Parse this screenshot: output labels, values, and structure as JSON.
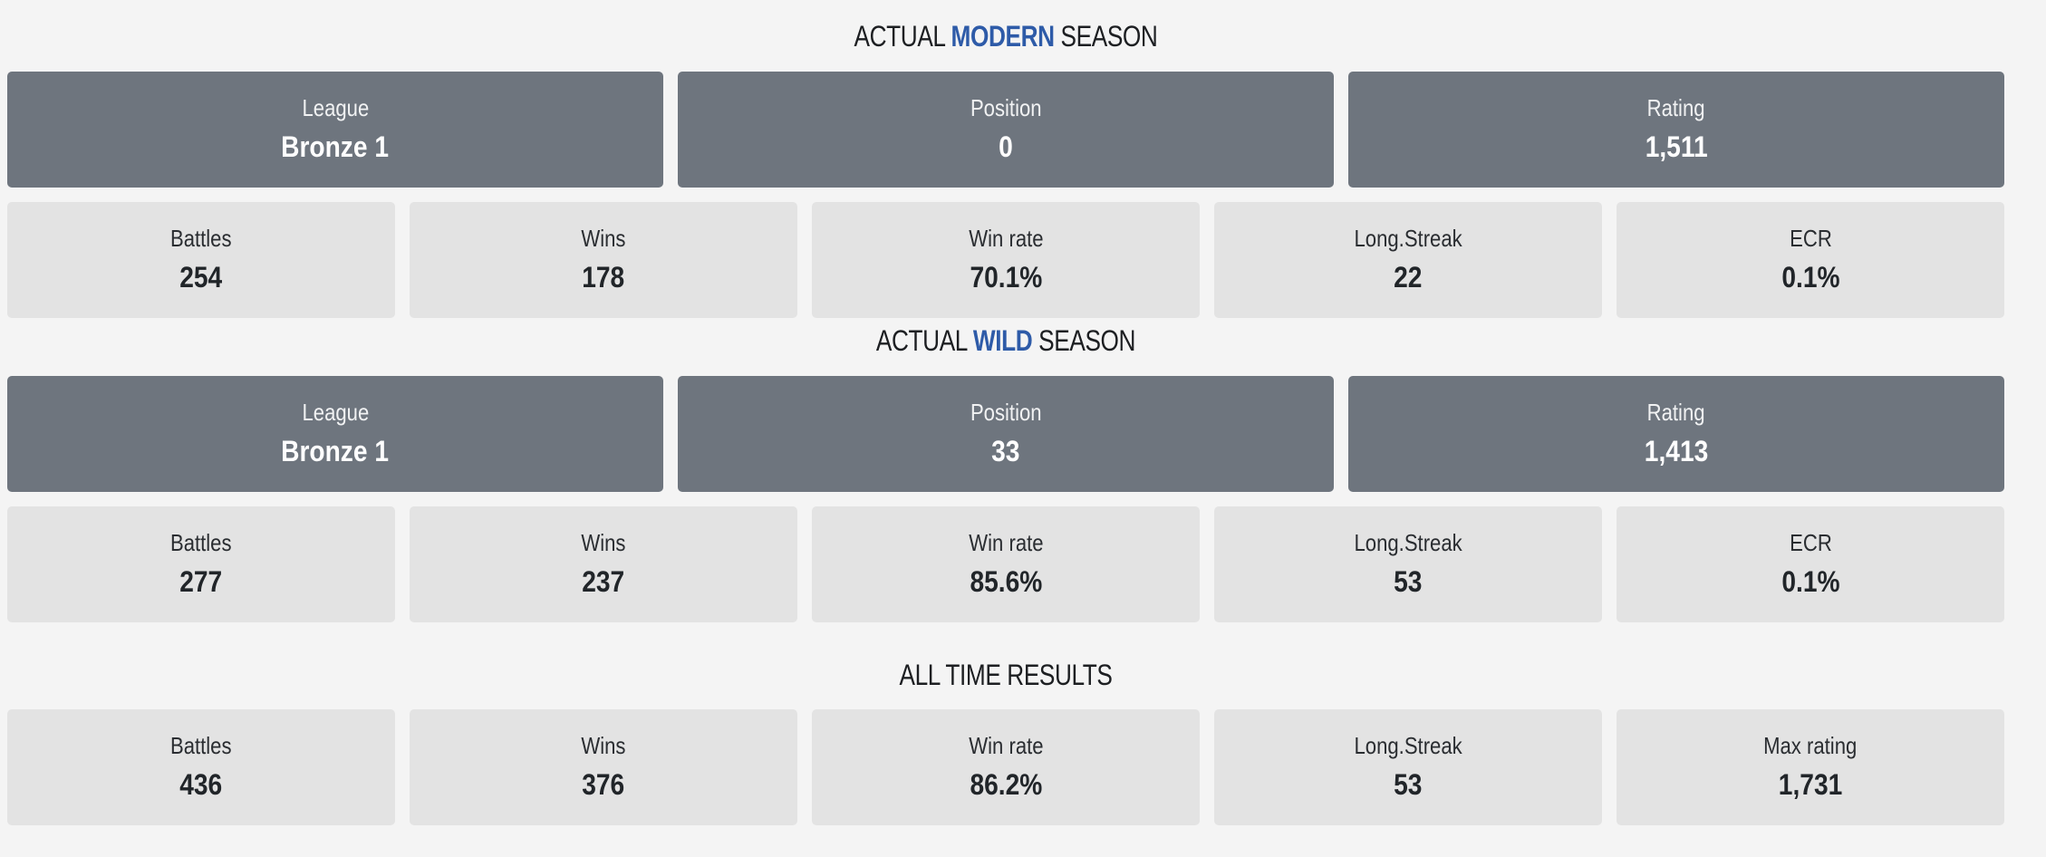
{
  "modern": {
    "title_prefix": "ACTUAL",
    "title_highlight": "MODERN",
    "title_suffix": "SEASON",
    "league_label": "League",
    "league_value": "Bronze 1",
    "position_label": "Position",
    "position_value": "0",
    "rating_label": "Rating",
    "rating_value": "1,511",
    "battles_label": "Battles",
    "battles_value": "254",
    "wins_label": "Wins",
    "wins_value": "178",
    "winrate_label": "Win rate",
    "winrate_value": "70.1%",
    "streak_label": "Long.Streak",
    "streak_value": "22",
    "ecr_label": "ECR",
    "ecr_value": "0.1%"
  },
  "wild": {
    "title_prefix": "ACTUAL",
    "title_highlight": "WILD",
    "title_suffix": "SEASON",
    "league_label": "League",
    "league_value": "Bronze 1",
    "position_label": "Position",
    "position_value": "33",
    "rating_label": "Rating",
    "rating_value": "1,413",
    "battles_label": "Battles",
    "battles_value": "277",
    "wins_label": "Wins",
    "wins_value": "237",
    "winrate_label": "Win rate",
    "winrate_value": "85.6%",
    "streak_label": "Long.Streak",
    "streak_value": "53",
    "ecr_label": "ECR",
    "ecr_value": "0.1%"
  },
  "alltime": {
    "title": "ALL TIME RESULTS",
    "battles_label": "Battles",
    "battles_value": "436",
    "wins_label": "Wins",
    "wins_value": "376",
    "winrate_label": "Win rate",
    "winrate_value": "86.2%",
    "streak_label": "Long.Streak",
    "streak_value": "53",
    "maxrating_label": "Max rating",
    "maxrating_value": "1,731"
  },
  "colors": {
    "highlight": "#2e5ba8",
    "dark_card": "#6e757e",
    "light_card": "#e3e3e3",
    "background": "#f4f4f4"
  }
}
